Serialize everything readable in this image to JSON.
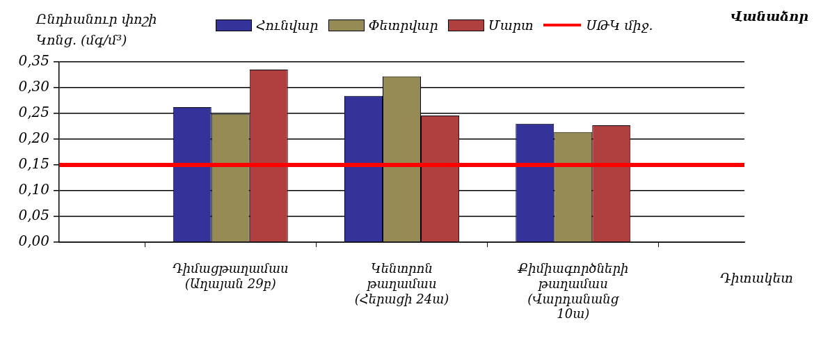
{
  "chart_data": {
    "type": "bar",
    "title": "Վանաձոր",
    "ylabel": "Ընդհանուր փոշի Կոնց. (մգ/մ³)",
    "xlabel": "Դիտակետ",
    "categories": [
      null,
      "Դիմացթաղամաս (Աղայան 29բ)",
      "Կենտրոն թաղամաս (Հերացի 24ա)",
      "Քիմիագործների թաղամաս (Վարդանանց 10ա)",
      null
    ],
    "series": [
      {
        "name": "Հունվար",
        "color": "#333399",
        "values": [
          null,
          0.262,
          0.284,
          0.23,
          null
        ]
      },
      {
        "name": "Փետրվար",
        "color": "#968b55",
        "values": [
          null,
          0.249,
          0.322,
          0.214,
          null
        ]
      },
      {
        "name": "Մարտ",
        "color": "#b04040",
        "values": [
          null,
          0.335,
          0.246,
          0.227,
          null
        ]
      }
    ],
    "ylim": [
      0,
      0.35
    ],
    "yticks": [
      {
        "value": 0,
        "label": "0,00"
      },
      {
        "value": 0.05,
        "label": "0,05"
      },
      {
        "value": 0.1,
        "label": "0,10"
      },
      {
        "value": 0.15,
        "label": "0,15"
      },
      {
        "value": 0.2,
        "label": "0,20"
      },
      {
        "value": 0.25,
        "label": "0,25"
      },
      {
        "value": 0.3,
        "label": "0,30"
      },
      {
        "value": 0.35,
        "label": "0,35"
      }
    ],
    "ref_lines": [
      {
        "axis": "y",
        "value": 0.15,
        "label": "ՍԹԿ միջ.",
        "color": "#ff0000"
      }
    ],
    "grid": "y",
    "legend": "top"
  }
}
